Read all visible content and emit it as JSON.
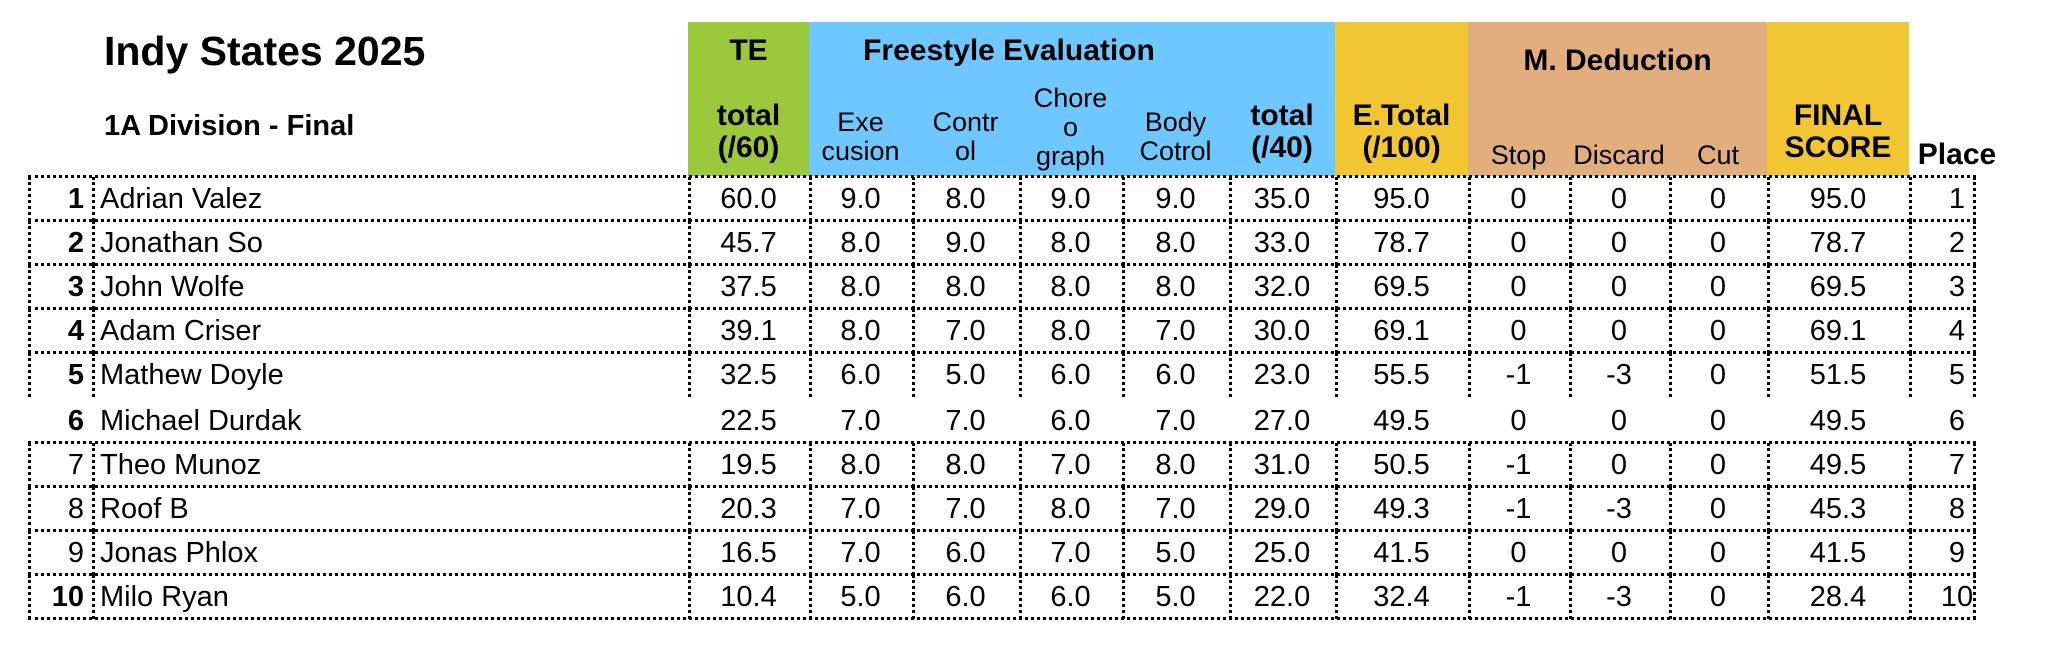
{
  "title": "Indy States 2025",
  "subtitle": "1A Division - Final",
  "colors": {
    "te_green": "#9CC83C",
    "freestyle_blue": "#6EC8FF",
    "etotal_yellow": "#F2C532",
    "deduction_tan": "#E3AE7E",
    "final_yellow": "#F2C532"
  },
  "groups": {
    "te": "TE",
    "freestyle": "Freestyle Evaluation",
    "deduction": "M. Deduction"
  },
  "headers": {
    "te_total": [
      "total",
      "(/60)"
    ],
    "execution": [
      "Exe",
      "cusion"
    ],
    "control": [
      "Contr",
      "ol"
    ],
    "choreography": [
      "Chore",
      "o",
      "graph"
    ],
    "body_control": [
      "Body",
      "Cotrol"
    ],
    "fe_total": [
      "total",
      "(/40)"
    ],
    "e_total": [
      "E.Total",
      "(/100)"
    ],
    "stop": "Stop",
    "discard": "Discard",
    "cut": "Cut",
    "final_score": [
      "FINAL",
      "SCORE"
    ],
    "place": "Place"
  },
  "rows": [
    {
      "rank": "1",
      "rank_bold": true,
      "name": "Adrian Valez",
      "te": "60.0",
      "exe": "9.0",
      "ctl": "8.0",
      "cho": "9.0",
      "body": "9.0",
      "fe": "35.0",
      "et": "95.0",
      "stop": "0",
      "discard": "0",
      "cut": "0",
      "final": "95.0",
      "place": "1"
    },
    {
      "rank": "2",
      "rank_bold": true,
      "name": "Jonathan So",
      "te": "45.7",
      "exe": "8.0",
      "ctl": "9.0",
      "cho": "8.0",
      "body": "8.0",
      "fe": "33.0",
      "et": "78.7",
      "stop": "0",
      "discard": "0",
      "cut": "0",
      "final": "78.7",
      "place": "2"
    },
    {
      "rank": "3",
      "rank_bold": true,
      "name": "John Wolfe",
      "te": "37.5",
      "exe": "8.0",
      "ctl": "8.0",
      "cho": "8.0",
      "body": "8.0",
      "fe": "32.0",
      "et": "69.5",
      "stop": "0",
      "discard": "0",
      "cut": "0",
      "final": "69.5",
      "place": "3"
    },
    {
      "rank": "4",
      "rank_bold": true,
      "name": "Adam Criser",
      "te": "39.1",
      "exe": "8.0",
      "ctl": "7.0",
      "cho": "8.0",
      "body": "7.0",
      "fe": "30.0",
      "et": "69.1",
      "stop": "0",
      "discard": "0",
      "cut": "0",
      "final": "69.1",
      "place": "4"
    },
    {
      "rank": "5",
      "rank_bold": true,
      "name": "Mathew Doyle",
      "te": "32.5",
      "exe": "6.0",
      "ctl": "5.0",
      "cho": "6.0",
      "body": "6.0",
      "fe": "23.0",
      "et": "55.5",
      "stop": "-1",
      "discard": "-3",
      "cut": "0",
      "final": "51.5",
      "place": "5"
    },
    {
      "rank": "6",
      "rank_bold": true,
      "name": "Michael Durdak",
      "te": "22.5",
      "exe": "7.0",
      "ctl": "7.0",
      "cho": "6.0",
      "body": "7.0",
      "fe": "27.0",
      "et": "49.5",
      "stop": "0",
      "discard": "0",
      "cut": "0",
      "final": "49.5",
      "place": "6"
    },
    {
      "rank": "7",
      "rank_bold": false,
      "name": "Theo Munoz",
      "te": "19.5",
      "exe": "8.0",
      "ctl": "8.0",
      "cho": "7.0",
      "body": "8.0",
      "fe": "31.0",
      "et": "50.5",
      "stop": "-1",
      "discard": "0",
      "cut": "0",
      "final": "49.5",
      "place": "7"
    },
    {
      "rank": "8",
      "rank_bold": false,
      "name": "Roof B",
      "te": "20.3",
      "exe": "7.0",
      "ctl": "7.0",
      "cho": "8.0",
      "body": "7.0",
      "fe": "29.0",
      "et": "49.3",
      "stop": "-1",
      "discard": "-3",
      "cut": "0",
      "final": "45.3",
      "place": "8"
    },
    {
      "rank": "9",
      "rank_bold": false,
      "name": "Jonas Phlox",
      "te": "16.5",
      "exe": "7.0",
      "ctl": "6.0",
      "cho": "7.0",
      "body": "5.0",
      "fe": "25.0",
      "et": "41.5",
      "stop": "0",
      "discard": "0",
      "cut": "0",
      "final": "41.5",
      "place": "9"
    },
    {
      "rank": "10",
      "rank_bold": true,
      "name": "Milo Ryan",
      "te": "10.4",
      "exe": "5.0",
      "ctl": "6.0",
      "cho": "6.0",
      "body": "5.0",
      "fe": "22.0",
      "et": "32.4",
      "stop": "-1",
      "discard": "-3",
      "cut": "0",
      "final": "28.4",
      "place": "10"
    }
  ]
}
